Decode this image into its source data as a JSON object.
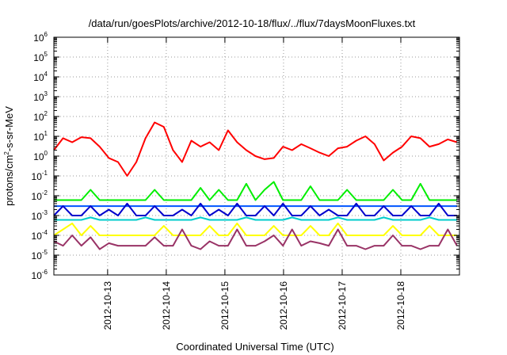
{
  "chart_data": {
    "type": "line",
    "title": "/data/run/goesPlots/archive/2012-10-18/flux/../flux/7daysMoonFluxes.txt",
    "xlabel": "Coordinated Universal Time (UTC)",
    "ylabel": {
      "base": "protons/cm",
      "sup": "2",
      "rest": "-s-sr-MeV"
    },
    "x_scale": "time",
    "xlim": [
      "2012-10-12T02:00",
      "2012-10-19T00:00"
    ],
    "x_ticks": [
      "2012-10-13",
      "2012-10-14",
      "2012-10-15",
      "2012-10-16",
      "2012-10-17",
      "2012-10-18"
    ],
    "y_scale": "log",
    "ylim": [
      1e-06,
      1000000.0
    ],
    "y_ticks": [
      {
        "base": "10",
        "exp": "-6"
      },
      {
        "base": "10",
        "exp": "-5"
      },
      {
        "base": "10",
        "exp": "-4"
      },
      {
        "base": "10",
        "exp": "-3"
      },
      {
        "base": "10",
        "exp": "-2"
      },
      {
        "base": "10",
        "exp": "-1"
      },
      {
        "base": "10",
        "exp": "0"
      },
      {
        "base": "10",
        "exp": "1"
      },
      {
        "base": "10",
        "exp": "2"
      },
      {
        "base": "10",
        "exp": "3"
      },
      {
        "base": "10",
        "exp": "4"
      },
      {
        "base": "10",
        "exp": "5"
      },
      {
        "base": "10",
        "exp": "6"
      }
    ],
    "grid": true,
    "x_values": [
      "2012-10-12T02:00",
      "2012-10-12T05:45",
      "2012-10-12T09:30",
      "2012-10-12T13:15",
      "2012-10-12T17:00",
      "2012-10-12T20:45",
      "2012-10-13T00:30",
      "2012-10-13T04:15",
      "2012-10-13T08:00",
      "2012-10-13T11:45",
      "2012-10-13T15:30",
      "2012-10-13T19:15",
      "2012-10-13T23:00",
      "2012-10-14T02:45",
      "2012-10-14T06:30",
      "2012-10-14T10:15",
      "2012-10-14T14:00",
      "2012-10-14T17:45",
      "2012-10-14T21:30",
      "2012-10-15T01:15",
      "2012-10-15T05:00",
      "2012-10-15T08:45",
      "2012-10-15T12:30",
      "2012-10-15T16:15",
      "2012-10-15T20:00",
      "2012-10-15T23:45",
      "2012-10-16T03:30",
      "2012-10-16T07:15",
      "2012-10-16T11:00",
      "2012-10-16T14:45",
      "2012-10-16T18:30",
      "2012-10-16T22:15",
      "2012-10-17T02:00",
      "2012-10-17T05:45",
      "2012-10-17T09:30",
      "2012-10-17T13:15",
      "2012-10-17T17:00",
      "2012-10-17T20:45",
      "2012-10-18T00:30",
      "2012-10-18T04:15",
      "2012-10-18T08:00",
      "2012-10-18T11:45",
      "2012-10-18T15:30",
      "2012-10-18T19:15",
      "2012-10-18T23:00"
    ],
    "series": [
      {
        "color": "#ff0000",
        "values": [
          2.0,
          8.0,
          5.0,
          9.0,
          8.0,
          3.0,
          0.8,
          0.5,
          0.1,
          0.5,
          8.0,
          50.0,
          30.0,
          2.0,
          0.5,
          6.0,
          3.0,
          5.0,
          2.0,
          20.0,
          5.0,
          2.0,
          1.0,
          0.7,
          0.8,
          3.0,
          2.0,
          4.0,
          2.5,
          1.5,
          1.0,
          2.5,
          3.0,
          6.0,
          10.0,
          4.0,
          0.6,
          1.5,
          3.0,
          10.0,
          8.0,
          3.0,
          4.0,
          7.0,
          5.0
        ]
      },
      {
        "color": "#00ee00",
        "values": [
          0.006,
          0.006,
          0.006,
          0.006,
          0.02,
          0.006,
          0.006,
          0.006,
          0.006,
          0.006,
          0.006,
          0.02,
          0.006,
          0.006,
          0.006,
          0.006,
          0.025,
          0.006,
          0.02,
          0.006,
          0.006,
          0.04,
          0.006,
          0.02,
          0.05,
          0.006,
          0.006,
          0.006,
          0.03,
          0.006,
          0.006,
          0.006,
          0.02,
          0.006,
          0.006,
          0.006,
          0.006,
          0.02,
          0.006,
          0.006,
          0.04,
          0.006,
          0.006,
          0.006,
          0.006
        ]
      },
      {
        "color": "#0055ff",
        "values": [
          0.003,
          0.003,
          0.003,
          0.003,
          0.003,
          0.003,
          0.003,
          0.003,
          0.003,
          0.003,
          0.003,
          0.003,
          0.003,
          0.003,
          0.003,
          0.003,
          0.003,
          0.003,
          0.003,
          0.003,
          0.003,
          0.003,
          0.003,
          0.003,
          0.003,
          0.003,
          0.003,
          0.003,
          0.003,
          0.003,
          0.003,
          0.003,
          0.003,
          0.003,
          0.003,
          0.003,
          0.003,
          0.003,
          0.003,
          0.003,
          0.003,
          0.003,
          0.003,
          0.003,
          0.003
        ]
      },
      {
        "color": "#0000cc",
        "values": [
          0.001,
          0.003,
          0.001,
          0.001,
          0.003,
          0.001,
          0.002,
          0.001,
          0.004,
          0.001,
          0.001,
          0.003,
          0.001,
          0.001,
          0.002,
          0.001,
          0.004,
          0.001,
          0.002,
          0.001,
          0.004,
          0.001,
          0.001,
          0.003,
          0.001,
          0.004,
          0.001,
          0.001,
          0.003,
          0.001,
          0.002,
          0.001,
          0.001,
          0.004,
          0.001,
          0.001,
          0.003,
          0.001,
          0.001,
          0.003,
          0.001,
          0.001,
          0.004,
          0.001,
          0.001
        ]
      },
      {
        "color": "#00cccc",
        "values": [
          0.0006,
          0.0006,
          0.0006,
          0.0006,
          0.0008,
          0.0006,
          0.0006,
          0.0006,
          0.0006,
          0.0006,
          0.0008,
          0.0006,
          0.0006,
          0.0006,
          0.0006,
          0.0006,
          0.0008,
          0.0006,
          0.0006,
          0.0006,
          0.0006,
          0.0008,
          0.0006,
          0.0006,
          0.0006,
          0.0006,
          0.0008,
          0.0006,
          0.0006,
          0.0006,
          0.0006,
          0.0008,
          0.0006,
          0.0006,
          0.0006,
          0.0006,
          0.0008,
          0.0006,
          0.0006,
          0.0006,
          0.0006,
          0.0008,
          0.0006,
          0.0006,
          0.0006
        ]
      },
      {
        "color": "#ffff00",
        "values": [
          0.0001,
          0.0002,
          0.0004,
          0.0001,
          0.0003,
          0.0001,
          0.0001,
          0.0001,
          0.0001,
          0.0001,
          0.0001,
          0.0001,
          0.0003,
          0.0001,
          0.0001,
          0.0001,
          0.0001,
          0.0003,
          0.0001,
          0.0001,
          0.0004,
          0.0001,
          0.0001,
          0.0001,
          0.0003,
          0.0001,
          0.0001,
          0.0001,
          0.0003,
          0.0001,
          0.0001,
          0.0004,
          0.0001,
          0.0001,
          0.0001,
          0.0001,
          0.0001,
          0.0003,
          0.0001,
          0.0001,
          0.0001,
          0.0003,
          0.0001,
          0.0001,
          0.0001
        ]
      },
      {
        "color": "#993366",
        "values": [
          5e-05,
          3e-05,
          0.0001,
          3e-05,
          8e-05,
          2e-05,
          4e-05,
          3e-05,
          3e-05,
          3e-05,
          3e-05,
          8e-05,
          3e-05,
          3e-05,
          0.0002,
          3e-05,
          2e-05,
          5e-05,
          3e-05,
          3e-05,
          0.0002,
          3e-05,
          3e-05,
          5e-05,
          0.0001,
          3e-05,
          0.0002,
          3e-05,
          5e-05,
          4e-05,
          3e-05,
          0.0002,
          3e-05,
          3e-05,
          2e-05,
          3e-05,
          3e-05,
          0.0001,
          3e-05,
          3e-05,
          2e-05,
          3e-05,
          3e-05,
          0.0002,
          3e-05
        ]
      }
    ]
  }
}
